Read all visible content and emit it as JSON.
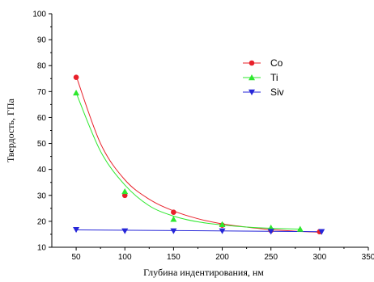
{
  "chart_data": {
    "type": "scatter",
    "title": "",
    "xlabel": "Глубина индентирования, нм",
    "ylabel": "Твердость, ГПа",
    "xlim": [
      25,
      350
    ],
    "ylim": [
      10,
      100
    ],
    "xticks": [
      50,
      100,
      150,
      200,
      250,
      300,
      350
    ],
    "yticks": [
      10,
      20,
      30,
      40,
      50,
      60,
      70,
      80,
      90,
      100
    ],
    "grid": false,
    "legend_position": "top-right",
    "series": [
      {
        "name": "Co",
        "color": "#e8202a",
        "marker": "circle",
        "x": [
          50,
          100,
          150,
          200,
          250,
          300
        ],
        "y": [
          75.5,
          30,
          23.5,
          18.5,
          16.5,
          16
        ],
        "fit_curve": [
          [
            50,
            76
          ],
          [
            75,
            50
          ],
          [
            100,
            36
          ],
          [
            125,
            28.5
          ],
          [
            150,
            24
          ],
          [
            175,
            21
          ],
          [
            200,
            19
          ],
          [
            225,
            17.8
          ],
          [
            250,
            16.8
          ],
          [
            275,
            16.2
          ],
          [
            300,
            15.8
          ]
        ]
      },
      {
        "name": "Ti",
        "color": "#2ee82e",
        "marker": "triangle-up",
        "x": [
          50,
          100,
          150,
          200,
          250,
          280
        ],
        "y": [
          69.5,
          31.5,
          20.8,
          18.8,
          17.5,
          17
        ],
        "fit_curve": [
          [
            50,
            69.5
          ],
          [
            75,
            47
          ],
          [
            100,
            34
          ],
          [
            125,
            26
          ],
          [
            150,
            22
          ],
          [
            175,
            19.8
          ],
          [
            200,
            18.6
          ],
          [
            225,
            17.8
          ],
          [
            250,
            17.3
          ],
          [
            280,
            17
          ]
        ]
      },
      {
        "name": "Siv",
        "color": "#2626d8",
        "marker": "triangle-down",
        "x": [
          50,
          100,
          150,
          200,
          250,
          302
        ],
        "y": [
          16.8,
          16.3,
          16.3,
          16.3,
          16.1,
          16
        ],
        "fit_curve": [
          [
            50,
            16.7
          ],
          [
            302,
            16
          ]
        ]
      }
    ]
  }
}
